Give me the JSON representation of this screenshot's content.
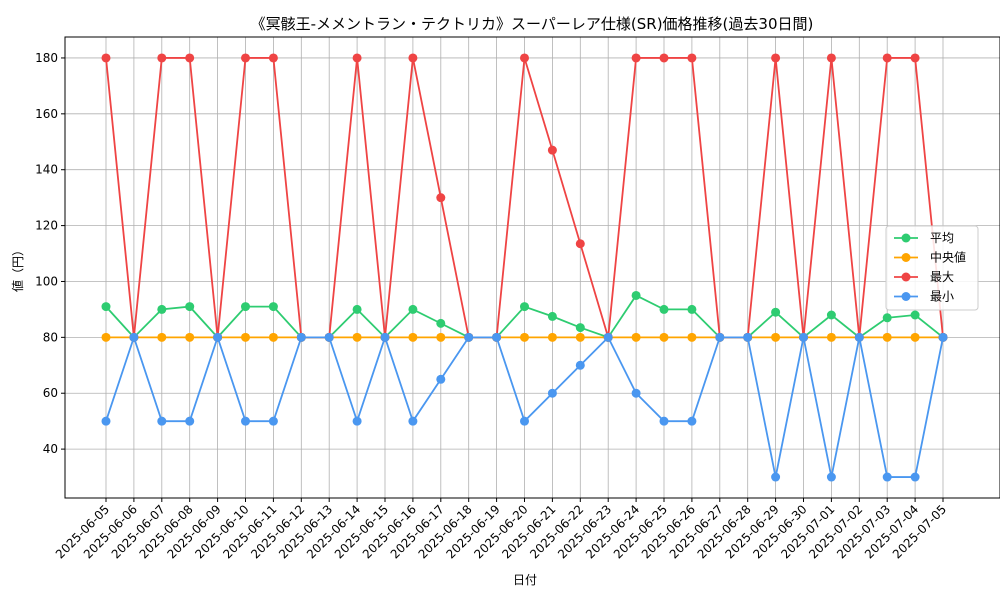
{
  "chart_data": {
    "type": "line",
    "title": "《冥骸王-メメントラン・テクトリカ》スーパーレア仕様(SR)価格推移(過去30日間)",
    "xlabel": "日付",
    "ylabel": "値（円）",
    "ylim": [
      22.5,
      187.5
    ],
    "yticks": [
      40,
      60,
      80,
      100,
      120,
      140,
      160,
      180
    ],
    "grid": true,
    "legend_position": "center-right",
    "categories": [
      "2025-06-05",
      "2025-06-06",
      "2025-06-07",
      "2025-06-08",
      "2025-06-09",
      "2025-06-10",
      "2025-06-11",
      "2025-06-12",
      "2025-06-13",
      "2025-06-14",
      "2025-06-15",
      "2025-06-16",
      "2025-06-17",
      "2025-06-18",
      "2025-06-19",
      "2025-06-20",
      "2025-06-21",
      "2025-06-22",
      "2025-06-23",
      "2025-06-24",
      "2025-06-25",
      "2025-06-26",
      "2025-06-27",
      "2025-06-28",
      "2025-06-29",
      "2025-06-30",
      "2025-07-01",
      "2025-07-02",
      "2025-07-03",
      "2025-07-04",
      "2025-07-05"
    ],
    "series": [
      {
        "name": "平均",
        "color": "#2ecc71",
        "values": [
          91,
          80,
          90,
          91,
          80,
          91,
          91,
          80,
          80,
          90,
          80,
          90,
          85,
          80,
          80,
          91,
          87.5,
          83.5,
          80,
          95,
          90,
          90,
          80,
          80,
          89,
          80,
          88,
          80,
          87,
          88,
          80
        ]
      },
      {
        "name": "中央値",
        "color": "#ffa500",
        "values": [
          80,
          80,
          80,
          80,
          80,
          80,
          80,
          80,
          80,
          80,
          80,
          80,
          80,
          80,
          80,
          80,
          80,
          80,
          80,
          80,
          80,
          80,
          80,
          80,
          80,
          80,
          80,
          80,
          80,
          80,
          80
        ]
      },
      {
        "name": "最大",
        "color": "#ef4444",
        "values": [
          180,
          80,
          180,
          180,
          80,
          180,
          180,
          80,
          80,
          180,
          80,
          180,
          130,
          80,
          80,
          180,
          147,
          113.5,
          80,
          180,
          180,
          180,
          80,
          80,
          180,
          80,
          180,
          80,
          180,
          180,
          80
        ]
      },
      {
        "name": "最小",
        "color": "#4a97f0",
        "values": [
          50,
          80,
          50,
          50,
          80,
          50,
          50,
          80,
          80,
          50,
          80,
          50,
          65,
          80,
          80,
          50,
          60,
          70,
          80,
          60,
          50,
          50,
          80,
          80,
          30,
          80,
          30,
          80,
          30,
          30,
          80
        ]
      }
    ]
  }
}
